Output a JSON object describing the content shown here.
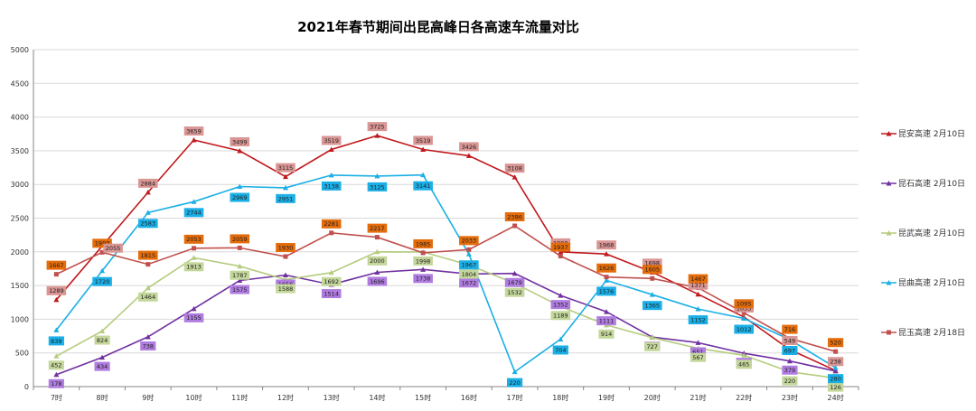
{
  "chart_data": {
    "type": "line",
    "title": "2021年春节期间出昆高峰日各高速车流量对比",
    "xlabel": "",
    "ylabel": "",
    "ylim": [
      0,
      5000
    ],
    "yticks": [
      "0",
      "500",
      "1000",
      "1500",
      "2000",
      "2500",
      "3000",
      "3500",
      "4000",
      "4500",
      "5000"
    ],
    "grid": true,
    "legend_position": "right",
    "categories": [
      "7时",
      "8时",
      "9时",
      "10时",
      "11时",
      "12时",
      "13时",
      "14时",
      "15时",
      "16时",
      "17时",
      "18时",
      "19时",
      "20时",
      "21时",
      "22时",
      "23时",
      "24时"
    ],
    "series": [
      {
        "name": "昆安高速 2月10日",
        "color": "#c0181c",
        "label_bg": "#d99694",
        "marker": "triangle",
        "values": [
          1289,
          null,
          2884,
          3659,
          3499,
          3115,
          3519,
          3725,
          3519,
          3426,
          3108,
          1999,
          1968,
          1698,
          1371,
          1033,
          549,
          238
        ],
        "labels": [
          "1289",
          "",
          "2884",
          "3659",
          "3499",
          "3115",
          "3519",
          "3725",
          "3519",
          "3426",
          "3108",
          "1999",
          "1968",
          "1698",
          "1371",
          "1033",
          "549",
          "238"
        ]
      },
      {
        "name": "昆石高速 2月10日",
        "color": "#7030a0",
        "label_bg": "#b07ce0",
        "marker": "triangle",
        "values": [
          178,
          434,
          738,
          1155,
          1575,
          1656,
          1514,
          1696,
          1738,
          1672,
          1679,
          1352,
          1111,
          734,
          651,
          494,
          379,
          230
        ],
        "labels": [
          "178",
          "434",
          "738",
          "1155",
          "1575",
          "1656",
          "1514",
          "1696",
          "1738",
          "1672",
          "1679",
          "1352",
          "1111",
          "734",
          "651",
          "494",
          "379",
          "230"
        ]
      },
      {
        "name": "昆武高速 2月10日",
        "color": "#b5cc7e",
        "label_bg": "#c4d79b",
        "marker": "triangle",
        "values": [
          452,
          824,
          1464,
          1913,
          1787,
          1588,
          1692,
          2000,
          1998,
          1804,
          1532,
          1189,
          914,
          727,
          567,
          465,
          220,
          126
        ],
        "labels": [
          "452",
          "824",
          "1464",
          "1913",
          "1787",
          "1588",
          "1692",
          "2000",
          "1998",
          "1804",
          "1532",
          "1189",
          "914",
          "727",
          "567",
          "465",
          "220",
          "126"
        ]
      },
      {
        "name": "昆曲高速 2月10日",
        "color": "#1aafe6",
        "label_bg": "#1aafe6",
        "marker": "triangle",
        "values": [
          839,
          1720,
          2583,
          2744,
          2969,
          2951,
          3138,
          3125,
          3141,
          1967,
          220,
          704,
          1576,
          1365,
          1152,
          1012,
          697,
          280
        ],
        "labels": [
          "839",
          "1720",
          "2583",
          "2744",
          "2969",
          "2951",
          "3138",
          "3125",
          "3141",
          "1967",
          "220",
          "704",
          "1576",
          "1365",
          "1152",
          "1012",
          "697",
          "280"
        ]
      },
      {
        "name": "昆玉高速 2月18日",
        "color": "#c0504d",
        "label_bg": "#e46c0a",
        "marker": "square",
        "values": [
          1667,
          1993,
          1815,
          2053,
          2059,
          1930,
          2281,
          2217,
          1985,
          2033,
          2386,
          1937,
          1626,
          1605,
          1467,
          1095,
          716,
          520
        ],
        "labels": [
          "1667",
          "1993",
          "1815",
          "2053",
          "2059",
          "1930",
          "2281",
          "2217",
          "1985",
          "2033",
          "2386",
          "1937",
          "1626",
          "1605",
          "1467",
          "1095",
          "716",
          "520"
        ]
      }
    ],
    "extra_labels": [
      {
        "series": 0,
        "category": "8时",
        "text": "2055",
        "value": 2055
      }
    ]
  }
}
